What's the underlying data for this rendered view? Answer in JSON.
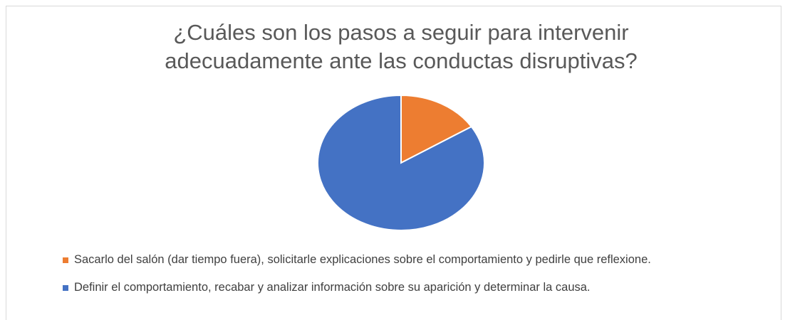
{
  "chart_data": {
    "type": "pie",
    "title": "¿Cuáles son los pasos a seguir para intervenir adecuadamente ante las conductas disruptivas?",
    "categories": [
      "Sacarlo del salón (dar tiempo fuera), solicitarle explicaciones sobre el comportamiento y pedirle que reflexione.",
      "Definir el comportamiento, recabar y analizar información sobre su aparición y determinar la causa."
    ],
    "values": [
      16,
      84
    ],
    "colors": [
      "#ed7d31",
      "#4472c4"
    ],
    "legend": "bottom"
  }
}
